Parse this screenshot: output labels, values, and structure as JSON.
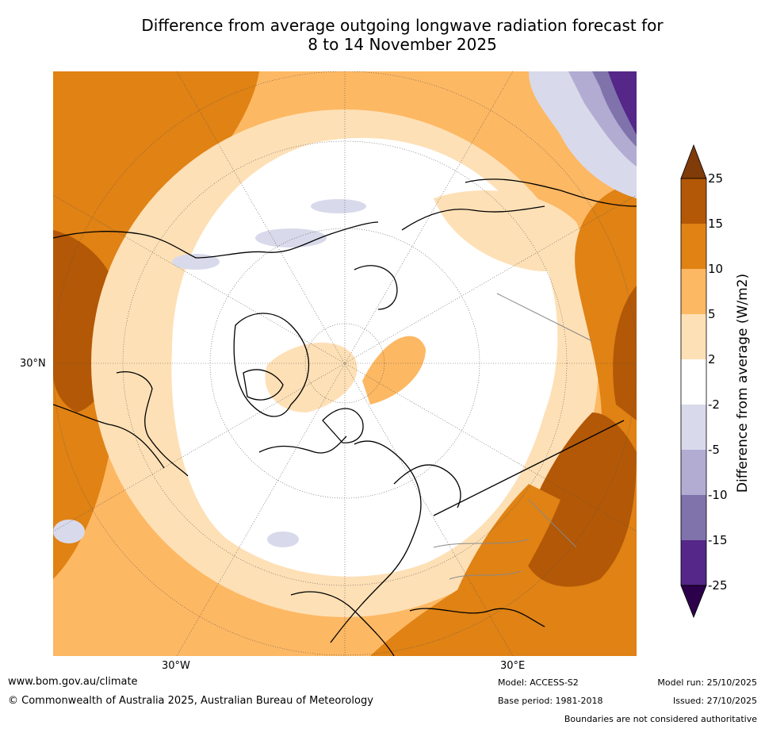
{
  "title": {
    "line1": "Difference from average outgoing longwave radiation forecast for",
    "line2": "8 to 14 November 2025"
  },
  "map": {
    "projection": "north-polar-stereographic",
    "lat_label": "30°N",
    "lon_labels": [
      "30°W",
      "30°E"
    ]
  },
  "colorbar": {
    "label": "Difference from average (W/m2)",
    "ticks": [
      "25",
      "15",
      "10",
      "5",
      "2",
      "-2",
      "-5",
      "-10",
      "-15",
      "-25"
    ],
    "colors": {
      "over": "#7f3b08",
      "b15_25": "#b35806",
      "b10_15": "#e08214",
      "b5_10": "#fdb863",
      "b2_5": "#fee0b6",
      "neutral": "#ffffff",
      "m5_m2": "#d8daeb",
      "m10_m5": "#b2abd2",
      "m15_m10": "#8073ac",
      "m25_m15": "#542788",
      "under": "#2d004b"
    }
  },
  "footer": {
    "website": "www.bom.gov.au/climate",
    "copyright": "© Commonwealth of Australia 2025, Australian Bureau of Meteorology",
    "model": "Model: ACCESS-S2",
    "base_period": "Base period: 1981-2018",
    "model_run": "Model run: 25/10/2025",
    "issued": "Issued: 27/10/2025",
    "disclaimer": "Boundaries are not considered authoritative"
  }
}
